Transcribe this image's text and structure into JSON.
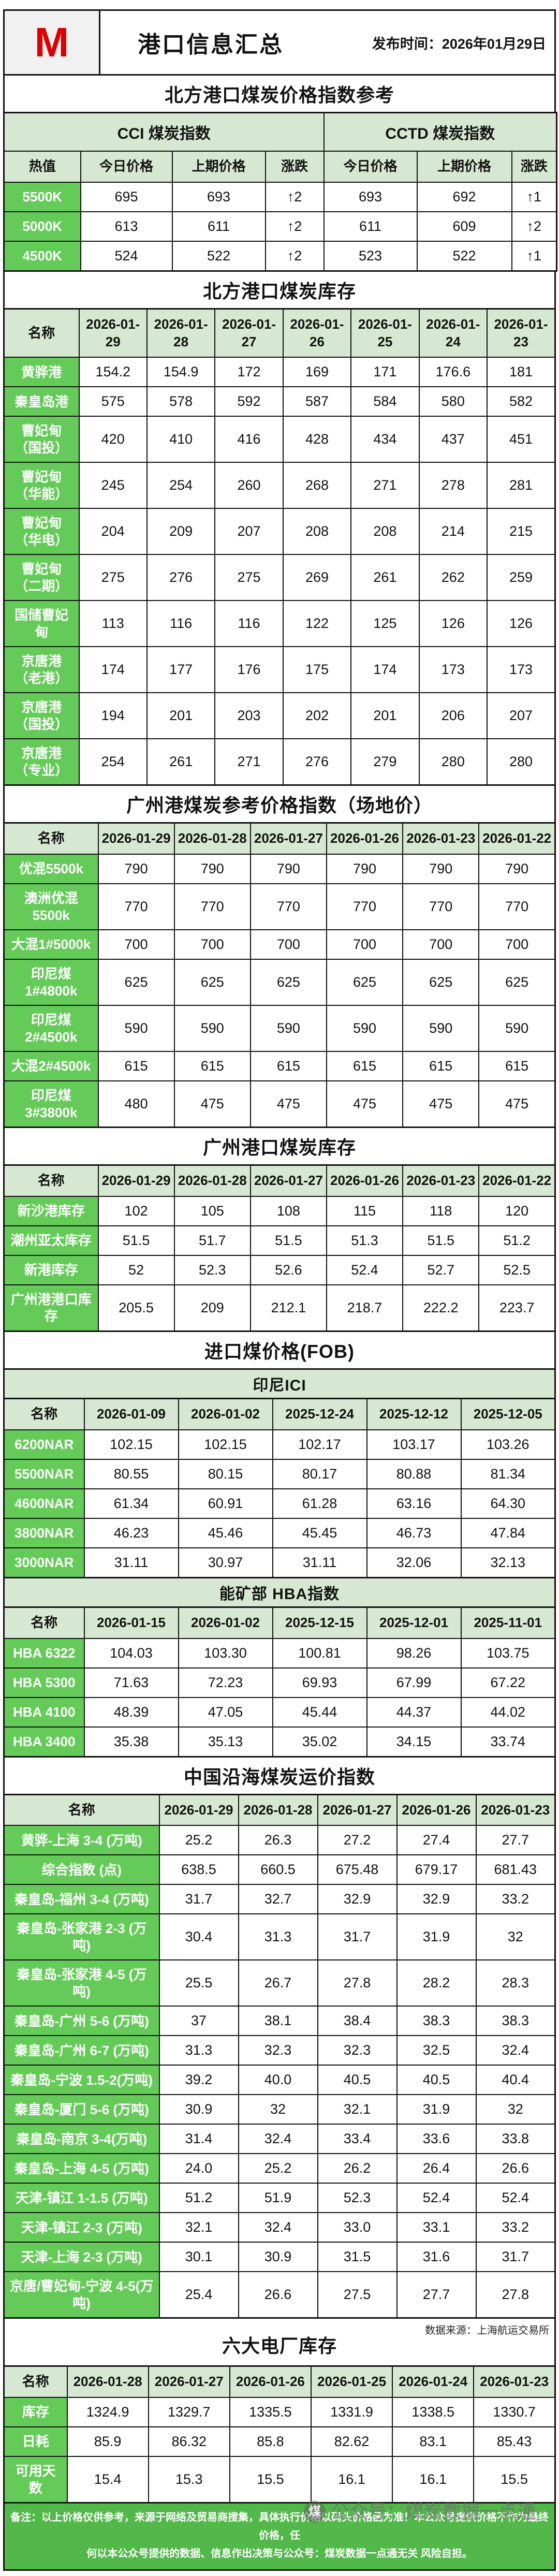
{
  "colors": {
    "label_green": "#64cb58",
    "header_green": "#d7e8d2",
    "footer_green": "#52b84a",
    "logo_red": "#dc0000"
  },
  "header": {
    "logo": "M",
    "title": "港口信息汇总",
    "publish": "发布时间：2026年01月29日"
  },
  "price_ref": {
    "title": "北方港口煤炭价格指数参考",
    "group1": "CCI 煤炭指数",
    "group2": "CCTD 煤炭指数",
    "headers": [
      "热值",
      "今日价格",
      "上期价格",
      "涨跌",
      "今日价格",
      "上期价格",
      "涨跌"
    ],
    "rows": [
      {
        "label": "5500K",
        "values": [
          "695",
          "693",
          "↑2",
          "693",
          "692",
          "↑1"
        ]
      },
      {
        "label": "5000K",
        "values": [
          "613",
          "611",
          "↑2",
          "611",
          "609",
          "↑2"
        ]
      },
      {
        "label": "4500K",
        "values": [
          "524",
          "522",
          "↑2",
          "523",
          "522",
          "↑1"
        ]
      }
    ]
  },
  "north_inventory": {
    "title": "北方港口煤炭库存",
    "columns": [
      "名称",
      "2026-01-29",
      "2026-01-28",
      "2026-01-27",
      "2026-01-26",
      "2026-01-25",
      "2026-01-24",
      "2026-01-23"
    ],
    "rows": [
      {
        "label": "黄骅港",
        "values": [
          "154.2",
          "154.9",
          "172",
          "169",
          "171",
          "176.6",
          "181"
        ]
      },
      {
        "label": "秦皇岛港",
        "values": [
          "575",
          "578",
          "592",
          "587",
          "584",
          "580",
          "582"
        ]
      },
      {
        "label": "曹妃甸（国投）",
        "values": [
          "420",
          "410",
          "416",
          "428",
          "434",
          "437",
          "451"
        ]
      },
      {
        "label": "曹妃甸（华能）",
        "values": [
          "245",
          "254",
          "260",
          "268",
          "271",
          "278",
          "281"
        ]
      },
      {
        "label": "曹妃甸（华电）",
        "values": [
          "204",
          "209",
          "207",
          "208",
          "208",
          "214",
          "215"
        ]
      },
      {
        "label": "曹妃甸（二期）",
        "values": [
          "275",
          "276",
          "275",
          "269",
          "261",
          "262",
          "259"
        ]
      },
      {
        "label": "国储曹妃甸",
        "values": [
          "113",
          "116",
          "116",
          "122",
          "125",
          "126",
          "126"
        ]
      },
      {
        "label": "京唐港（老港）",
        "values": [
          "174",
          "177",
          "176",
          "175",
          "174",
          "173",
          "173"
        ]
      },
      {
        "label": "京唐港（国投）",
        "values": [
          "194",
          "201",
          "203",
          "202",
          "201",
          "206",
          "207"
        ]
      },
      {
        "label": "京唐港（专业）",
        "values": [
          "254",
          "261",
          "271",
          "276",
          "279",
          "280",
          "280"
        ]
      }
    ]
  },
  "gz_price": {
    "title": "广州港煤炭参考价格指数（场地价）",
    "columns": [
      "名称",
      "2026-01-29",
      "2026-01-28",
      "2026-01-27",
      "2026-01-26",
      "2026-01-23",
      "2026-01-22"
    ],
    "rows": [
      {
        "label": "优混5500k",
        "values": [
          "790",
          "790",
          "790",
          "790",
          "790",
          "790"
        ]
      },
      {
        "label": "澳洲优混 5500k",
        "values": [
          "770",
          "770",
          "770",
          "770",
          "770",
          "770"
        ]
      },
      {
        "label": "大混1#5000k",
        "values": [
          "700",
          "700",
          "700",
          "700",
          "700",
          "700"
        ]
      },
      {
        "label": "印尼煤 1#4800k",
        "values": [
          "625",
          "625",
          "625",
          "625",
          "625",
          "625"
        ]
      },
      {
        "label": "印尼煤 2#4500k",
        "values": [
          "590",
          "590",
          "590",
          "590",
          "590",
          "590"
        ]
      },
      {
        "label": "大混2#4500k",
        "values": [
          "615",
          "615",
          "615",
          "615",
          "615",
          "615"
        ]
      },
      {
        "label": "印尼煤 3#3800k",
        "values": [
          "480",
          "475",
          "475",
          "475",
          "475",
          "475"
        ]
      }
    ]
  },
  "gz_inventory": {
    "title": "广州港口煤炭库存",
    "columns": [
      "名称",
      "2026-01-29",
      "2026-01-28",
      "2026-01-27",
      "2026-01-26",
      "2026-01-23",
      "2026-01-22"
    ],
    "rows": [
      {
        "label": "新沙港库存",
        "values": [
          "102",
          "105",
          "108",
          "115",
          "118",
          "120"
        ]
      },
      {
        "label": "潮州亚太库存",
        "values": [
          "51.5",
          "51.7",
          "51.5",
          "51.3",
          "51.5",
          "51.2"
        ]
      },
      {
        "label": "新港库存",
        "values": [
          "52",
          "52.3",
          "52.6",
          "52.4",
          "52.7",
          "52.5"
        ]
      },
      {
        "label": "广州港港口库存",
        "values": [
          "205.5",
          "209",
          "212.1",
          "218.7",
          "222.2",
          "223.7"
        ]
      }
    ]
  },
  "import_fob": {
    "title": "进口煤价格(FOB)",
    "band": "印尼ICI",
    "columns": [
      "名称",
      "2026-01-09",
      "2026-01-02",
      "2025-12-24",
      "2025-12-12",
      "2025-12-05"
    ],
    "rows": [
      {
        "label": "6200NAR",
        "values": [
          "102.15",
          "102.15",
          "102.17",
          "103.17",
          "103.26"
        ]
      },
      {
        "label": "5500NAR",
        "values": [
          "80.55",
          "80.15",
          "80.17",
          "80.88",
          "81.34"
        ]
      },
      {
        "label": "4600NAR",
        "values": [
          "61.34",
          "60.91",
          "61.28",
          "63.16",
          "64.30"
        ]
      },
      {
        "label": "3800NAR",
        "values": [
          "46.23",
          "45.46",
          "45.45",
          "46.73",
          "47.84"
        ]
      },
      {
        "label": "3000NAR",
        "values": [
          "31.11",
          "30.97",
          "31.11",
          "32.06",
          "32.13"
        ]
      }
    ]
  },
  "hba": {
    "band": "能矿部 HBA指数",
    "columns": [
      "名称",
      "2026-01-15",
      "2026-01-02",
      "2025-12-15",
      "2025-12-01",
      "2025-11-01"
    ],
    "rows": [
      {
        "label": "HBA 6322",
        "values": [
          "104.03",
          "103.30",
          "100.81",
          "98.26",
          "103.75"
        ]
      },
      {
        "label": "HBA 5300",
        "values": [
          "71.63",
          "72.23",
          "69.93",
          "67.99",
          "67.22"
        ]
      },
      {
        "label": "HBA 4100",
        "values": [
          "48.39",
          "47.05",
          "45.44",
          "44.37",
          "44.02"
        ]
      },
      {
        "label": "HBA 3400",
        "values": [
          "35.38",
          "35.13",
          "35.02",
          "34.15",
          "33.74"
        ]
      }
    ]
  },
  "freight": {
    "title": "中国沿海煤炭运价指数",
    "columns": [
      "名称",
      "2026-01-29",
      "2026-01-28",
      "2026-01-27",
      "2026-01-26",
      "2026-01-23"
    ],
    "rows": [
      {
        "label": "黄骅-上海 3-4 (万吨)",
        "values": [
          "25.2",
          "26.3",
          "27.2",
          "27.4",
          "27.7"
        ]
      },
      {
        "label": "综合指数 (点)",
        "values": [
          "638.5",
          "660.5",
          "675.48",
          "679.17",
          "681.43"
        ]
      },
      {
        "label": "秦皇岛-福州 3-4 (万吨)",
        "values": [
          "31.7",
          "32.7",
          "32.9",
          "32.9",
          "33.2"
        ]
      },
      {
        "label": "秦皇岛-张家港 2-3 (万吨)",
        "values": [
          "30.4",
          "31.3",
          "31.7",
          "31.9",
          "32"
        ]
      },
      {
        "label": "秦皇岛-张家港 4-5 (万吨)",
        "values": [
          "25.5",
          "26.7",
          "27.8",
          "28.2",
          "28.3"
        ]
      },
      {
        "label": "秦皇岛-广州 5-6 (万吨)",
        "values": [
          "37",
          "38.1",
          "38.4",
          "38.3",
          "38.3"
        ]
      },
      {
        "label": "秦皇岛-广州 6-7 (万吨)",
        "values": [
          "31.3",
          "32.3",
          "32.3",
          "32.5",
          "32.4"
        ]
      },
      {
        "label": "秦皇岛-宁波 1.5-2(万吨)",
        "values": [
          "39.2",
          "40.0",
          "40.5",
          "40.5",
          "40.4"
        ]
      },
      {
        "label": "秦皇岛-厦门 5-6 (万吨)",
        "values": [
          "30.9",
          "32",
          "32.1",
          "31.9",
          "32"
        ]
      },
      {
        "label": "秦皇岛-南京 3-4(万吨)",
        "values": [
          "31.4",
          "32.4",
          "33.4",
          "33.6",
          "33.8"
        ]
      },
      {
        "label": "秦皇岛-上海 4-5 (万吨)",
        "values": [
          "24.0",
          "25.2",
          "26.2",
          "26.4",
          "26.6"
        ]
      },
      {
        "label": "天津-镇江 1-1.5 (万吨)",
        "values": [
          "51.2",
          "51.9",
          "52.3",
          "52.4",
          "52.4"
        ]
      },
      {
        "label": "天津-镇江 2-3 (万吨)",
        "values": [
          "32.1",
          "32.4",
          "33.0",
          "33.1",
          "33.2"
        ]
      },
      {
        "label": "天津-上海 2-3 (万吨)",
        "values": [
          "30.1",
          "30.9",
          "31.5",
          "31.6",
          "31.7"
        ]
      },
      {
        "label": "京唐/曹妃甸-宁波 4-5(万吨)",
        "values": [
          "25.4",
          "26.6",
          "27.5",
          "27.7",
          "27.8"
        ]
      }
    ],
    "source_note": "数据来源：上海航运交易所"
  },
  "plants": {
    "title": "六大电厂库存",
    "columns": [
      "名称",
      "2026-01-28",
      "2026-01-27",
      "2026-01-26",
      "2026-01-25",
      "2026-01-24",
      "2026-01-23"
    ],
    "rows": [
      {
        "label": "库存",
        "values": [
          "1324.9",
          "1329.7",
          "1335.5",
          "1331.9",
          "1338.5",
          "1330.7"
        ]
      },
      {
        "label": "日耗",
        "values": [
          "85.9",
          "86.32",
          "85.8",
          "82.62",
          "83.1",
          "85.43"
        ]
      },
      {
        "label": "可用天数",
        "values": [
          "15.4",
          "15.3",
          "15.5",
          "16.1",
          "16.1",
          "15.5"
        ]
      }
    ]
  },
  "footer": {
    "note_line1": "备注：以上价格仅供参考，来源于网络及贸易商搜集，具体执行价格以码头价格函为准！本公众号提供价格不作为最终价格，任",
    "note_line2": "何以本公众号提供的数据、信息作出决策与公众号：煤炭数据一点通无关 风险自担。",
    "watermark": "公众号：煤炭数据一点通",
    "watermark_badge": "煤"
  }
}
